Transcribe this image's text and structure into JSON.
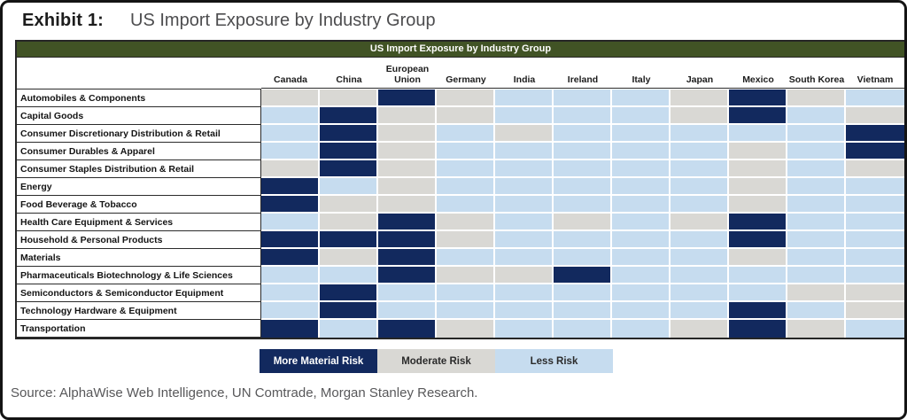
{
  "header": {
    "exhibit_label": "Exhibit 1:",
    "title": "US Import Exposure by Industry Group"
  },
  "table": {
    "title": "US Import Exposure by Industry Group",
    "columns": [
      "Canada",
      "China",
      "European Union",
      "Germany",
      "India",
      "Ireland",
      "Italy",
      "Japan",
      "Mexico",
      "South Korea",
      "Vietnam"
    ],
    "rows": [
      {
        "label": "Automobiles & Components",
        "cells": [
          "moderate",
          "moderate",
          "more",
          "moderate",
          "less",
          "less",
          "less",
          "moderate",
          "more",
          "moderate",
          "less"
        ]
      },
      {
        "label": "Capital Goods",
        "cells": [
          "less",
          "more",
          "moderate",
          "moderate",
          "less",
          "less",
          "less",
          "moderate",
          "more",
          "less",
          "moderate"
        ]
      },
      {
        "label": "Consumer Discretionary Distribution & Retail",
        "cells": [
          "less",
          "more",
          "moderate",
          "less",
          "moderate",
          "less",
          "less",
          "less",
          "less",
          "less",
          "more"
        ]
      },
      {
        "label": "Consumer Durables & Apparel",
        "cells": [
          "less",
          "more",
          "moderate",
          "less",
          "less",
          "less",
          "less",
          "less",
          "moderate",
          "less",
          "more"
        ]
      },
      {
        "label": "Consumer Staples Distribution & Retail",
        "cells": [
          "moderate",
          "more",
          "moderate",
          "less",
          "less",
          "less",
          "less",
          "less",
          "moderate",
          "less",
          "moderate"
        ]
      },
      {
        "label": "Energy",
        "cells": [
          "more",
          "less",
          "moderate",
          "less",
          "less",
          "less",
          "less",
          "less",
          "moderate",
          "less",
          "less"
        ]
      },
      {
        "label": "Food Beverage & Tobacco",
        "cells": [
          "more",
          "moderate",
          "moderate",
          "less",
          "less",
          "less",
          "less",
          "less",
          "moderate",
          "less",
          "less"
        ]
      },
      {
        "label": "Health Care Equipment & Services",
        "cells": [
          "less",
          "moderate",
          "more",
          "moderate",
          "less",
          "moderate",
          "less",
          "moderate",
          "more",
          "less",
          "less"
        ]
      },
      {
        "label": "Household & Personal Products",
        "cells": [
          "more",
          "more",
          "more",
          "moderate",
          "less",
          "less",
          "less",
          "less",
          "more",
          "less",
          "less"
        ]
      },
      {
        "label": "Materials",
        "cells": [
          "more",
          "moderate",
          "more",
          "less",
          "less",
          "less",
          "less",
          "less",
          "moderate",
          "less",
          "less"
        ]
      },
      {
        "label": "Pharmaceuticals Biotechnology & Life Sciences",
        "cells": [
          "less",
          "less",
          "more",
          "moderate",
          "moderate",
          "more",
          "less",
          "less",
          "less",
          "less",
          "less"
        ]
      },
      {
        "label": "Semiconductors & Semiconductor Equipment",
        "cells": [
          "less",
          "more",
          "less",
          "less",
          "less",
          "less",
          "less",
          "less",
          "less",
          "moderate",
          "moderate"
        ]
      },
      {
        "label": "Technology Hardware & Equipment",
        "cells": [
          "less",
          "more",
          "less",
          "less",
          "less",
          "less",
          "less",
          "less",
          "more",
          "less",
          "moderate"
        ]
      },
      {
        "label": "Transportation",
        "cells": [
          "more",
          "less",
          "more",
          "moderate",
          "less",
          "less",
          "less",
          "moderate",
          "more",
          "moderate",
          "less"
        ]
      }
    ]
  },
  "legend": [
    {
      "label": "More Material Risk",
      "level": "more"
    },
    {
      "label": "Moderate Risk",
      "level": "moderate"
    },
    {
      "label": "Less Risk",
      "level": "less"
    }
  ],
  "source": "Source: AlphaWise Web Intelligence, UN Comtrade, Morgan Stanley Research.",
  "colors": {
    "more": "#12295E",
    "moderate": "#D9D8D4",
    "less": "#C6DCEF",
    "header_green": "#415325",
    "table_border": "#262626"
  },
  "chart_data": {
    "type": "heatmap",
    "title": "US Import Exposure by Industry Group",
    "x_categories": [
      "Canada",
      "China",
      "European Union",
      "Germany",
      "India",
      "Ireland",
      "Italy",
      "Japan",
      "Mexico",
      "South Korea",
      "Vietnam"
    ],
    "y_categories": [
      "Automobiles & Components",
      "Capital Goods",
      "Consumer Discretionary Distribution & Retail",
      "Consumer Durables & Apparel",
      "Consumer Staples Distribution & Retail",
      "Energy",
      "Food Beverage & Tobacco",
      "Health Care Equipment & Services",
      "Household & Personal Products",
      "Materials",
      "Pharmaceuticals Biotechnology & Life Sciences",
      "Semiconductors & Semiconductor Equipment",
      "Technology Hardware & Equipment",
      "Transportation"
    ],
    "values": [
      [
        "moderate",
        "moderate",
        "more",
        "moderate",
        "less",
        "less",
        "less",
        "moderate",
        "more",
        "moderate",
        "less"
      ],
      [
        "less",
        "more",
        "moderate",
        "moderate",
        "less",
        "less",
        "less",
        "moderate",
        "more",
        "less",
        "moderate"
      ],
      [
        "less",
        "more",
        "moderate",
        "less",
        "moderate",
        "less",
        "less",
        "less",
        "less",
        "less",
        "more"
      ],
      [
        "less",
        "more",
        "moderate",
        "less",
        "less",
        "less",
        "less",
        "less",
        "moderate",
        "less",
        "more"
      ],
      [
        "moderate",
        "more",
        "moderate",
        "less",
        "less",
        "less",
        "less",
        "less",
        "moderate",
        "less",
        "moderate"
      ],
      [
        "more",
        "less",
        "moderate",
        "less",
        "less",
        "less",
        "less",
        "less",
        "moderate",
        "less",
        "less"
      ],
      [
        "more",
        "moderate",
        "moderate",
        "less",
        "less",
        "less",
        "less",
        "less",
        "moderate",
        "less",
        "less"
      ],
      [
        "less",
        "moderate",
        "more",
        "moderate",
        "less",
        "moderate",
        "less",
        "moderate",
        "more",
        "less",
        "less"
      ],
      [
        "more",
        "more",
        "more",
        "moderate",
        "less",
        "less",
        "less",
        "less",
        "more",
        "less",
        "less"
      ],
      [
        "more",
        "moderate",
        "more",
        "less",
        "less",
        "less",
        "less",
        "less",
        "moderate",
        "less",
        "less"
      ],
      [
        "less",
        "less",
        "more",
        "moderate",
        "moderate",
        "more",
        "less",
        "less",
        "less",
        "less",
        "less"
      ],
      [
        "less",
        "more",
        "less",
        "less",
        "less",
        "less",
        "less",
        "less",
        "less",
        "moderate",
        "moderate"
      ],
      [
        "less",
        "more",
        "less",
        "less",
        "less",
        "less",
        "less",
        "less",
        "more",
        "less",
        "moderate"
      ],
      [
        "more",
        "less",
        "more",
        "moderate",
        "less",
        "less",
        "less",
        "moderate",
        "more",
        "moderate",
        "less"
      ]
    ],
    "value_scale": {
      "more": "More Material Risk",
      "moderate": "Moderate Risk",
      "less": "Less Risk"
    },
    "legend": [
      "More Material Risk",
      "Moderate Risk",
      "Less Risk"
    ],
    "legend_position": "bottom"
  }
}
